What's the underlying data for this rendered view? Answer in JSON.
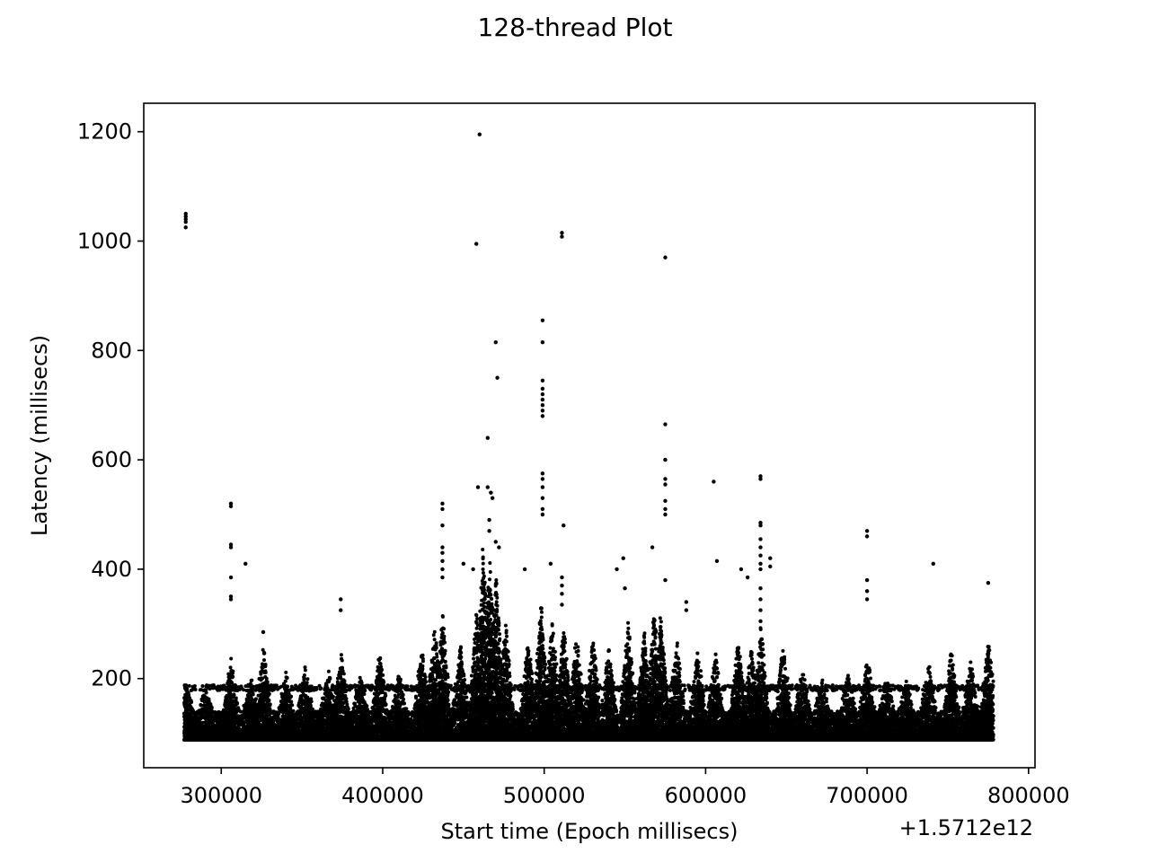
{
  "chart_data": {
    "type": "scatter",
    "title": "128-thread Plot",
    "xlabel": "Start time (Epoch millisecs)",
    "ylabel": "Latency (millisecs)",
    "x_offset_label": "+1.5712e12",
    "xlim": [
      252000,
      804000
    ],
    "ylim": [
      37,
      1252
    ],
    "xticks": [
      300000,
      400000,
      500000,
      600000,
      700000,
      800000
    ],
    "xtick_labels": [
      "300000",
      "400000",
      "500000",
      "600000",
      "700000",
      "800000"
    ],
    "yticks": [
      200,
      400,
      600,
      800,
      1000,
      1200
    ],
    "ytick_labels": [
      "200",
      "400",
      "600",
      "800",
      "1000",
      "1200"
    ],
    "grid": false,
    "marker_color": "#000000",
    "series": [
      {
        "points": [
          [
            278000,
            1050
          ],
          [
            278000,
            1045
          ],
          [
            278000,
            1040
          ],
          [
            278000,
            1035
          ],
          [
            278000,
            1025
          ],
          [
            306000,
            520
          ],
          [
            306000,
            515
          ],
          [
            306000,
            445
          ],
          [
            306000,
            440
          ],
          [
            306000,
            385
          ],
          [
            306000,
            350
          ],
          [
            306000,
            345
          ],
          [
            315000,
            410
          ],
          [
            326000,
            285
          ],
          [
            374000,
            345
          ],
          [
            374000,
            325
          ],
          [
            437000,
            520
          ],
          [
            437000,
            510
          ],
          [
            437000,
            480
          ],
          [
            437000,
            440
          ],
          [
            437000,
            430
          ],
          [
            437000,
            415
          ],
          [
            437000,
            400
          ],
          [
            437000,
            385
          ],
          [
            450000,
            410
          ],
          [
            456000,
            400
          ],
          [
            458000,
            995
          ],
          [
            460000,
            1195
          ],
          [
            459000,
            550
          ],
          [
            465000,
            640
          ],
          [
            465000,
            550
          ],
          [
            467000,
            540
          ],
          [
            468000,
            530
          ],
          [
            470000,
            815
          ],
          [
            471000,
            750
          ],
          [
            466000,
            490
          ],
          [
            466000,
            470
          ],
          [
            470000,
            450
          ],
          [
            472000,
            440
          ],
          [
            488000,
            400
          ],
          [
            499000,
            855
          ],
          [
            499000,
            815
          ],
          [
            499000,
            745
          ],
          [
            499000,
            730
          ],
          [
            499000,
            720
          ],
          [
            499000,
            710
          ],
          [
            499000,
            700
          ],
          [
            499000,
            690
          ],
          [
            499000,
            680
          ],
          [
            499000,
            575
          ],
          [
            499000,
            565
          ],
          [
            499000,
            550
          ],
          [
            499000,
            530
          ],
          [
            499000,
            510
          ],
          [
            499000,
            500
          ],
          [
            504000,
            410
          ],
          [
            511000,
            1015
          ],
          [
            511000,
            1008
          ],
          [
            511000,
            385
          ],
          [
            511000,
            370
          ],
          [
            511000,
            355
          ],
          [
            511000,
            335
          ],
          [
            512000,
            480
          ],
          [
            545000,
            400
          ],
          [
            549000,
            420
          ],
          [
            550000,
            365
          ],
          [
            567000,
            440
          ],
          [
            575000,
            970
          ],
          [
            575000,
            665
          ],
          [
            575000,
            600
          ],
          [
            575000,
            565
          ],
          [
            575000,
            555
          ],
          [
            575000,
            525
          ],
          [
            575000,
            510
          ],
          [
            575000,
            500
          ],
          [
            575000,
            380
          ],
          [
            588000,
            340
          ],
          [
            588000,
            325
          ],
          [
            605000,
            560
          ],
          [
            607000,
            415
          ],
          [
            622000,
            400
          ],
          [
            626000,
            385
          ],
          [
            634000,
            570
          ],
          [
            634000,
            565
          ],
          [
            634000,
            485
          ],
          [
            634000,
            480
          ],
          [
            634000,
            455
          ],
          [
            634000,
            440
          ],
          [
            634000,
            425
          ],
          [
            634000,
            410
          ],
          [
            634000,
            400
          ],
          [
            634000,
            365
          ],
          [
            634000,
            345
          ],
          [
            634000,
            325
          ],
          [
            634000,
            305
          ],
          [
            640000,
            420
          ],
          [
            640000,
            405
          ],
          [
            700000,
            470
          ],
          [
            700000,
            460
          ],
          [
            700000,
            380
          ],
          [
            700000,
            360
          ],
          [
            700000,
            345
          ],
          [
            741000,
            410
          ],
          [
            775000,
            375
          ]
        ]
      }
    ],
    "dense_band": {
      "x_range": [
        277000,
        778000
      ],
      "floor_latency": 88,
      "baseline_range": [
        88,
        140
      ],
      "secondary_row": 183,
      "bursts": [
        [
          278000,
          200
        ],
        [
          290000,
          185
        ],
        [
          306000,
          240
        ],
        [
          318000,
          210
        ],
        [
          326000,
          260
        ],
        [
          340000,
          215
        ],
        [
          352000,
          225
        ],
        [
          366000,
          230
        ],
        [
          374000,
          250
        ],
        [
          386000,
          205
        ],
        [
          398000,
          250
        ],
        [
          410000,
          215
        ],
        [
          424000,
          265
        ],
        [
          432000,
          295
        ],
        [
          437000,
          320
        ],
        [
          448000,
          270
        ],
        [
          458000,
          330
        ],
        [
          462000,
          450
        ],
        [
          466000,
          430
        ],
        [
          470000,
          400
        ],
        [
          476000,
          300
        ],
        [
          490000,
          275
        ],
        [
          498000,
          340
        ],
        [
          505000,
          310
        ],
        [
          512000,
          300
        ],
        [
          520000,
          290
        ],
        [
          530000,
          280
        ],
        [
          540000,
          265
        ],
        [
          552000,
          310
        ],
        [
          562000,
          290
        ],
        [
          568000,
          330
        ],
        [
          572000,
          320
        ],
        [
          582000,
          270
        ],
        [
          595000,
          255
        ],
        [
          606000,
          245
        ],
        [
          620000,
          270
        ],
        [
          628000,
          260
        ],
        [
          634000,
          300
        ],
        [
          648000,
          265
        ],
        [
          660000,
          220
        ],
        [
          672000,
          205
        ],
        [
          688000,
          215
        ],
        [
          700000,
          250
        ],
        [
          712000,
          205
        ],
        [
          724000,
          200
        ],
        [
          738000,
          230
        ],
        [
          752000,
          255
        ],
        [
          764000,
          235
        ],
        [
          775000,
          275
        ]
      ]
    }
  }
}
